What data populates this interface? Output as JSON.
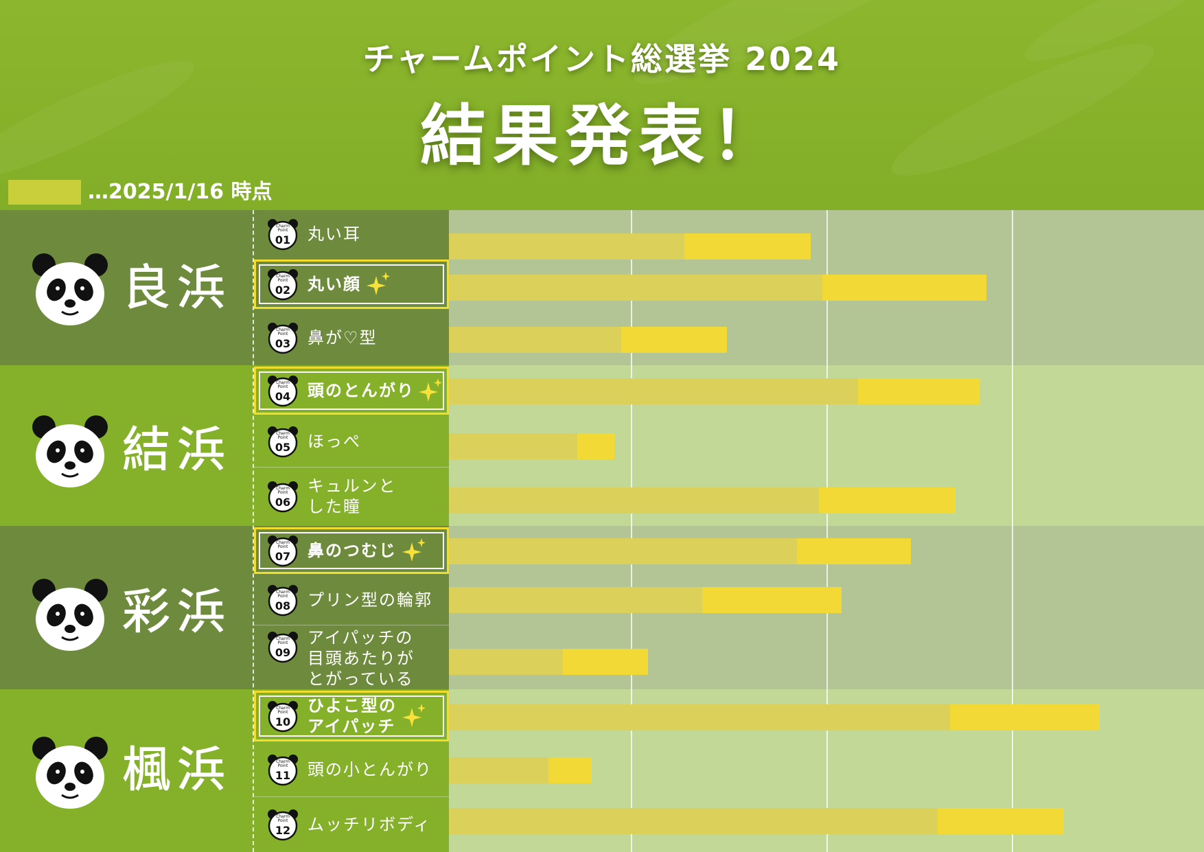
{
  "header": {
    "subtitle": "チャームポイント総選挙 2024",
    "title": "結果発表！"
  },
  "legend": {
    "text": "…2025/1/16 時点",
    "swatch_color": "#c8cf3b"
  },
  "colors": {
    "bg": "#85b02a",
    "dark_band_left": "#6e8b3d",
    "dark_band_right": "#b3c595",
    "light_band_left": "#84b02a",
    "light_band_right": "#c2d896",
    "bar_prev": "#dad05a",
    "bar_cur": "#f2d935",
    "highlight_frame": "#f2dd2f"
  },
  "groups": [
    {
      "name": "良浜",
      "icon": "panda-face-icon"
    },
    {
      "name": "結浜",
      "icon": "panda-face-icon"
    },
    {
      "name": "彩浜",
      "icon": "panda-face-icon"
    },
    {
      "name": "楓浜",
      "icon": "panda-face-icon"
    }
  ],
  "badge": {
    "line1": "Charm",
    "line2": "Point"
  },
  "chart_data": {
    "type": "bar",
    "orientation": "horizontal",
    "stacked": true,
    "x_range": [
      0,
      1100
    ],
    "grid_lines": [
      265,
      550,
      820
    ],
    "categories": [
      "丸い耳",
      "丸い顔",
      "鼻が♡型",
      "頭のとんがり",
      "ほっぺ",
      "キュルンとした瞳",
      "鼻のつむじ",
      "プリン型の輪郭",
      "アイパッチの目頭あたりがとがっている",
      "ひよこ型のアイパッチ",
      "頭の小とんがり",
      "ムッチリボディ"
    ],
    "series": [
      {
        "values": [
          343,
          544,
          251,
          596,
          187,
          539,
          507,
          369,
          166,
          730,
          145,
          712
        ]
      },
      {
        "values": [
          184,
          239,
          154,
          177,
          54,
          199,
          166,
          203,
          124,
          218,
          63,
          184
        ]
      }
    ]
  },
  "items": [
    {
      "num": "01",
      "label": "丸い耳",
      "highlight": false
    },
    {
      "num": "02",
      "label": "丸い顔",
      "highlight": true
    },
    {
      "num": "03",
      "label": "鼻が♡型",
      "highlight": false
    },
    {
      "num": "04",
      "label": "頭のとんがり",
      "highlight": true
    },
    {
      "num": "05",
      "label": "ほっぺ",
      "highlight": false
    },
    {
      "num": "06",
      "label": "キュルンと\nした瞳",
      "highlight": false
    },
    {
      "num": "07",
      "label": "鼻のつむじ",
      "highlight": true
    },
    {
      "num": "08",
      "label": "プリン型の輪郭",
      "highlight": false
    },
    {
      "num": "09",
      "label": "アイパッチの\n目頭あたりが\nとがっている",
      "highlight": false
    },
    {
      "num": "10",
      "label": "ひよこ型の\nアイパッチ",
      "highlight": true
    },
    {
      "num": "11",
      "label": "頭の小とんがり",
      "highlight": false
    },
    {
      "num": "12",
      "label": "ムッチリボディ",
      "highlight": false
    }
  ]
}
